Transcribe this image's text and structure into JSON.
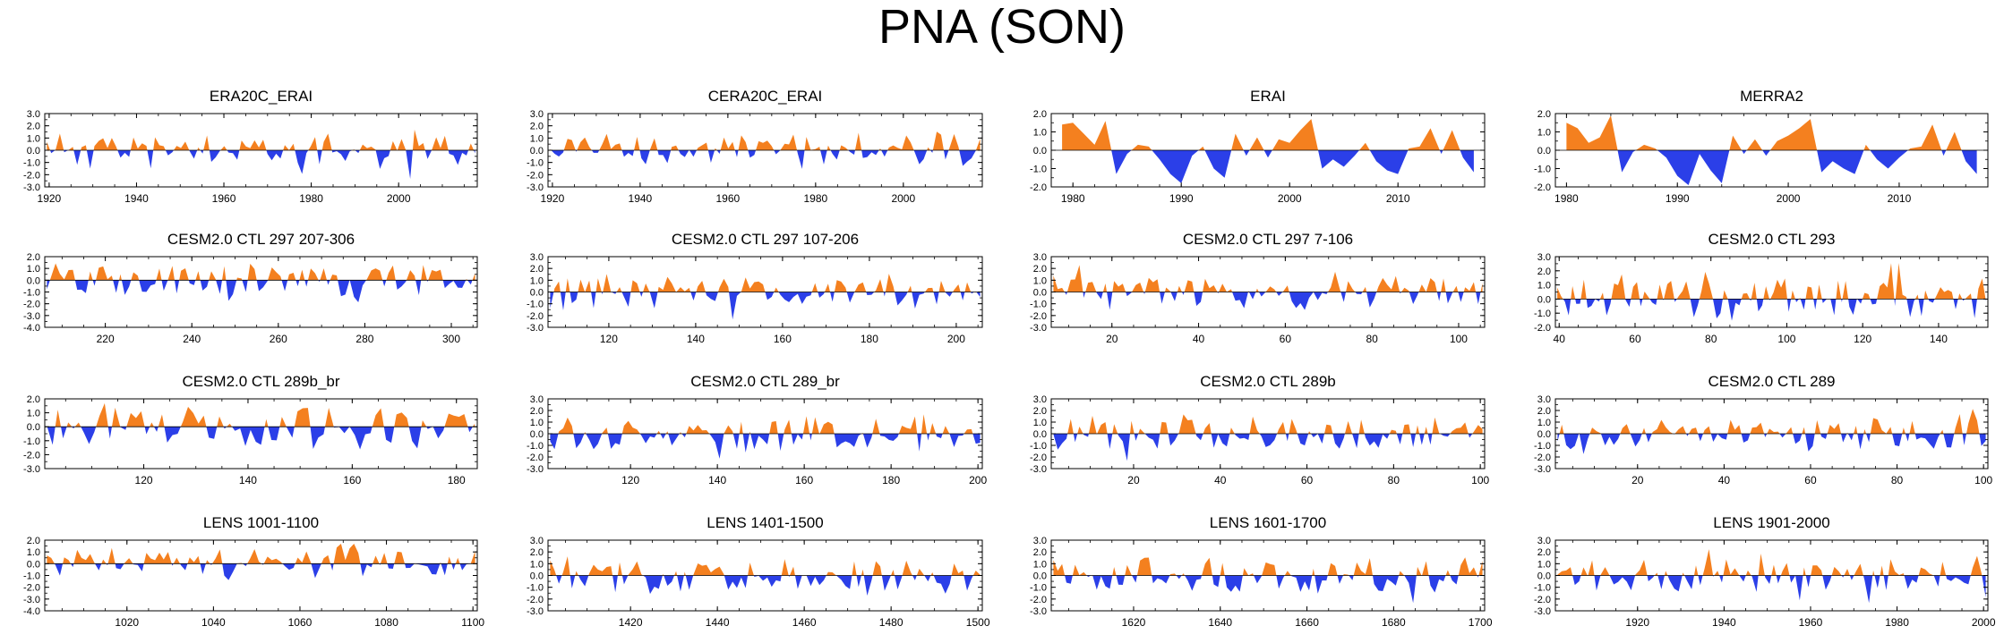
{
  "title": "PNA (SON)",
  "colors": {
    "positive": "#f4801f",
    "negative": "#2b3fe8",
    "axis": "#000000"
  },
  "chart_data": [
    {
      "type": "area",
      "title": "ERA20C_ERAI",
      "xlim": [
        1919,
        2018
      ],
      "ylim": [
        -3.0,
        3.0
      ],
      "yticks": [
        "3.0",
        "2.0",
        "1.0",
        "0.0",
        "-1.0",
        "-2.0",
        "-3.0"
      ],
      "xticks": [
        "1920",
        "1940",
        "1960",
        "1980",
        "2000"
      ],
      "seed": 11,
      "length": 100
    },
    {
      "type": "area",
      "title": "CERA20C_ERAI",
      "xlim": [
        1919,
        2018
      ],
      "ylim": [
        -3.0,
        3.0
      ],
      "yticks": [
        "3.0",
        "2.0",
        "1.0",
        "0.0",
        "-1.0",
        "-2.0",
        "-3.0"
      ],
      "xticks": [
        "1920",
        "1940",
        "1960",
        "1980",
        "2000"
      ],
      "seed": 12,
      "length": 100
    },
    {
      "type": "area",
      "title": "ERAI",
      "xlim": [
        1978,
        2018
      ],
      "ylim": [
        -2.0,
        2.0
      ],
      "yticks": [
        "2.0",
        "1.0",
        "0.0",
        "-1.0",
        "-2.0"
      ],
      "xticks": [
        "1980",
        "1990",
        "2000",
        "2010"
      ],
      "x": [
        1979,
        1980,
        1981,
        1982,
        1983,
        1984,
        1985,
        1986,
        1987,
        1988,
        1989,
        1990,
        1991,
        1992,
        1993,
        1994,
        1995,
        1996,
        1997,
        1998,
        1999,
        2000,
        2001,
        2002,
        2003,
        2004,
        2005,
        2006,
        2007,
        2008,
        2009,
        2010,
        2011,
        2012,
        2013,
        2014,
        2015,
        2016,
        2017
      ],
      "values": [
        1.4,
        1.5,
        0.9,
        0.3,
        1.6,
        -1.3,
        -0.2,
        0.3,
        0.2,
        -0.5,
        -1.3,
        -1.8,
        -0.3,
        0.2,
        -1.0,
        -1.5,
        0.9,
        -0.3,
        0.7,
        -0.4,
        0.6,
        0.4,
        1.1,
        1.7,
        -1.0,
        -0.5,
        -0.9,
        -0.3,
        0.4,
        -0.6,
        -1.1,
        -1.3,
        0.1,
        0.2,
        1.2,
        -0.2,
        1.1,
        -0.4,
        -1.2
      ]
    },
    {
      "type": "area",
      "title": "MERRA2",
      "xlim": [
        1979,
        2018
      ],
      "ylim": [
        -2.0,
        2.0
      ],
      "yticks": [
        "2.0",
        "1.0",
        "0.0",
        "-1.0",
        "-2.0"
      ],
      "xticks": [
        "1980",
        "1990",
        "2000",
        "2010"
      ],
      "x": [
        1980,
        1981,
        1982,
        1983,
        1984,
        1985,
        1986,
        1987,
        1988,
        1989,
        1990,
        1991,
        1992,
        1993,
        1994,
        1995,
        1996,
        1997,
        1998,
        1999,
        2000,
        2001,
        2002,
        2003,
        2004,
        2005,
        2006,
        2007,
        2008,
        2009,
        2010,
        2011,
        2012,
        2013,
        2014,
        2015,
        2016,
        2017
      ],
      "values": [
        1.5,
        1.2,
        0.4,
        0.7,
        1.9,
        -1.2,
        -0.1,
        0.3,
        0.1,
        -0.4,
        -1.4,
        -1.9,
        -0.2,
        -1.1,
        -1.8,
        0.8,
        -0.2,
        0.6,
        -0.3,
        0.5,
        0.8,
        1.2,
        1.7,
        -1.2,
        -0.6,
        -1.0,
        -1.3,
        0.3,
        -0.5,
        -1.0,
        -0.4,
        0.1,
        0.2,
        1.4,
        -0.3,
        1.0,
        -0.6,
        -1.3
      ]
    },
    {
      "type": "area",
      "title": "CESM2.0 CTL 297 207-306",
      "xlim": [
        206,
        306
      ],
      "ylim": [
        -4.0,
        2.0
      ],
      "yticks": [
        "2.0",
        "1.0",
        "0.0",
        "-1.0",
        "-2.0",
        "-3.0",
        "-4.0"
      ],
      "xticks": [
        "220",
        "240",
        "260",
        "280",
        "300"
      ],
      "seed": 21,
      "length": 100
    },
    {
      "type": "area",
      "title": "CESM2.0 CTL 297 107-206",
      "xlim": [
        106,
        206
      ],
      "ylim": [
        -3.0,
        3.0
      ],
      "yticks": [
        "3.0",
        "2.0",
        "1.0",
        "0.0",
        "-1.0",
        "-2.0",
        "-3.0"
      ],
      "xticks": [
        "120",
        "140",
        "160",
        "180",
        "200"
      ],
      "seed": 22,
      "length": 100
    },
    {
      "type": "area",
      "title": "CESM2.0 CTL 297 7-106",
      "xlim": [
        6,
        106
      ],
      "ylim": [
        -3.0,
        3.0
      ],
      "yticks": [
        "3.0",
        "2.0",
        "1.0",
        "0.0",
        "-1.0",
        "-2.0",
        "-3.0"
      ],
      "xticks": [
        "20",
        "40",
        "60",
        "80",
        "100"
      ],
      "seed": 23,
      "length": 100
    },
    {
      "type": "area",
      "title": "CESM2.0 CTL 293",
      "xlim": [
        39,
        153
      ],
      "ylim": [
        -2.0,
        3.0
      ],
      "yticks": [
        "3.0",
        "2.0",
        "1.0",
        "0.0",
        "-1.0",
        "-2.0"
      ],
      "xticks": [
        "40",
        "60",
        "80",
        "100",
        "120",
        "140"
      ],
      "seed": 24,
      "length": 114
    },
    {
      "type": "area",
      "title": "CESM2.0 CTL 289b_br",
      "xlim": [
        101,
        184
      ],
      "ylim": [
        -3.0,
        2.0
      ],
      "yticks": [
        "2.0",
        "1.0",
        "0.0",
        "-1.0",
        "-2.0",
        "-3.0"
      ],
      "xticks": [
        "120",
        "140",
        "160",
        "180"
      ],
      "seed": 31,
      "length": 83
    },
    {
      "type": "area",
      "title": "CESM2.0 CTL 289_br",
      "xlim": [
        101,
        201
      ],
      "ylim": [
        -3.0,
        3.0
      ],
      "yticks": [
        "3.0",
        "2.0",
        "1.0",
        "0.0",
        "-1.0",
        "-2.0",
        "-3.0"
      ],
      "xticks": [
        "120",
        "140",
        "160",
        "180",
        "200"
      ],
      "seed": 32,
      "length": 100
    },
    {
      "type": "area",
      "title": "CESM2.0 CTL 289b",
      "xlim": [
        1,
        101
      ],
      "ylim": [
        -3.0,
        3.0
      ],
      "yticks": [
        "3.0",
        "2.0",
        "1.0",
        "0.0",
        "-1.0",
        "-2.0",
        "-3.0"
      ],
      "xticks": [
        "20",
        "40",
        "60",
        "80",
        "100"
      ],
      "seed": 33,
      "length": 100
    },
    {
      "type": "area",
      "title": "CESM2.0 CTL 289",
      "xlim": [
        1,
        101
      ],
      "ylim": [
        -3.0,
        3.0
      ],
      "yticks": [
        "3.0",
        "2.0",
        "1.0",
        "0.0",
        "-1.0",
        "-2.0",
        "-3.0"
      ],
      "xticks": [
        "20",
        "40",
        "60",
        "80",
        "100"
      ],
      "seed": 34,
      "length": 100
    },
    {
      "type": "area",
      "title": "LENS 1001-1100",
      "xlim": [
        1001,
        1101
      ],
      "ylim": [
        -4.0,
        2.0
      ],
      "yticks": [
        "2.0",
        "1.0",
        "0.0",
        "-1.0",
        "-2.0",
        "-3.0",
        "-4.0"
      ],
      "xticks": [
        "1020",
        "1040",
        "1060",
        "1080",
        "1100"
      ],
      "seed": 41,
      "length": 100
    },
    {
      "type": "area",
      "title": "LENS 1401-1500",
      "xlim": [
        1401,
        1501
      ],
      "ylim": [
        -3.0,
        3.0
      ],
      "yticks": [
        "3.0",
        "2.0",
        "1.0",
        "0.0",
        "-1.0",
        "-2.0",
        "-3.0"
      ],
      "xticks": [
        "1420",
        "1440",
        "1460",
        "1480",
        "1500"
      ],
      "seed": 42,
      "length": 100
    },
    {
      "type": "area",
      "title": "LENS 1601-1700",
      "xlim": [
        1601,
        1701
      ],
      "ylim": [
        -3.0,
        3.0
      ],
      "yticks": [
        "3.0",
        "2.0",
        "1.0",
        "0.0",
        "-1.0",
        "-2.0",
        "-3.0"
      ],
      "xticks": [
        "1620",
        "1640",
        "1660",
        "1680",
        "1700"
      ],
      "seed": 43,
      "length": 100
    },
    {
      "type": "area",
      "title": "LENS 1901-2000",
      "xlim": [
        1901,
        2001
      ],
      "ylim": [
        -3.0,
        3.0
      ],
      "yticks": [
        "3.0",
        "2.0",
        "1.0",
        "0.0",
        "-1.0",
        "-2.0",
        "-3.0"
      ],
      "xticks": [
        "1920",
        "1940",
        "1960",
        "1980",
        "2000"
      ],
      "seed": 44,
      "length": 100
    }
  ]
}
